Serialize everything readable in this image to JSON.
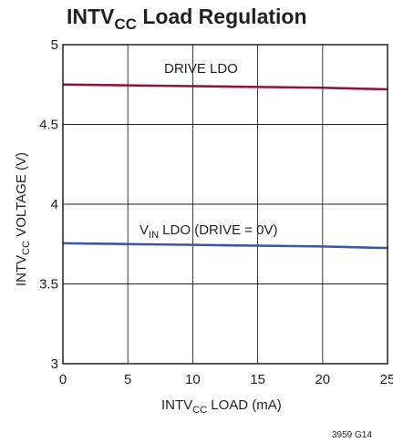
{
  "chart_data": {
    "type": "line",
    "title": {
      "main": "INTV",
      "sub": "CC",
      "rest": " Load Regulation"
    },
    "xlabel": {
      "main": "INTV",
      "sub": "CC",
      "rest": " LOAD (mA)"
    },
    "ylabel": {
      "main": "INTV",
      "sub": "CC",
      "rest": " VOLTAGE (V)"
    },
    "xlim": [
      0,
      25
    ],
    "ylim": [
      3,
      5
    ],
    "xticks": [
      0,
      5,
      10,
      15,
      20,
      25
    ],
    "xtick_labels": [
      "0",
      "5",
      "10",
      "15",
      "20",
      "25"
    ],
    "yticks": [
      3,
      3.5,
      4,
      4.5,
      5
    ],
    "ytick_labels": [
      "3",
      "3.5",
      "4",
      "4.5",
      "5"
    ],
    "grid": true,
    "legend": "none",
    "series": [
      {
        "name": "DRIVE LDO",
        "color": "#8b1538",
        "x": [
          0,
          5,
          10,
          15,
          20,
          25
        ],
        "y": [
          4.75,
          4.745,
          4.74,
          4.735,
          4.73,
          4.72
        ]
      },
      {
        "name": "V_IN LDO (DRIVE = 0V)",
        "color": "#3a56a5",
        "x": [
          0,
          5,
          10,
          15,
          20,
          25
        ],
        "y": [
          3.755,
          3.75,
          3.745,
          3.74,
          3.735,
          3.725
        ]
      }
    ],
    "annotations": {
      "drive_ldo": "DRIVE LDO",
      "vin_ldo": {
        "main": "V",
        "sub": "IN",
        "rest": " LDO (DRIVE = 0V)"
      }
    },
    "figure_id": "3959 G14"
  }
}
